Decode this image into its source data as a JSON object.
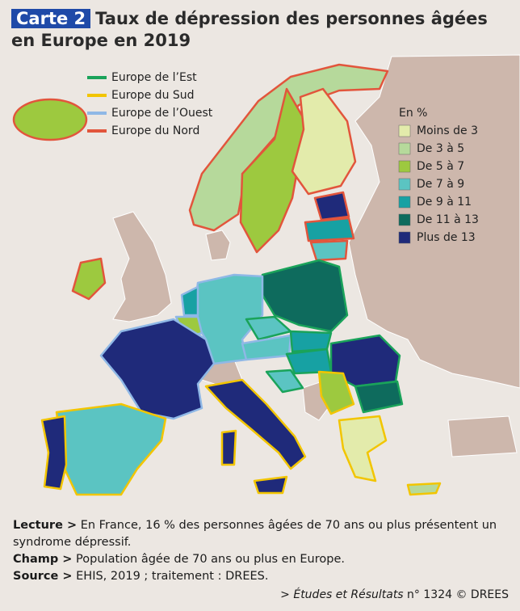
{
  "header": {
    "badge": "Carte 2",
    "title_lines": [
      "Taux de dépression des personnes âgées",
      "en Europe en 2019"
    ]
  },
  "region_legend": [
    {
      "label": "Europe de l’Est",
      "color": "#1aa35a"
    },
    {
      "label": "Europe du Sud",
      "color": "#f2c500"
    },
    {
      "label": "Europe de l’Ouest",
      "color": "#8fb8e6"
    },
    {
      "label": "Europe du Nord",
      "color": "#e2553c"
    }
  ],
  "class_legend": {
    "title": "En %",
    "items": [
      {
        "label": "Moins de 3",
        "color": "#e3ebab"
      },
      {
        "label": "De 3 à 5",
        "color": "#b6d99b"
      },
      {
        "label": "De 5 à 7",
        "color": "#9dc93f"
      },
      {
        "label": "De 7 à 9",
        "color": "#5bc4c2"
      },
      {
        "label": "De 9 à 11",
        "color": "#17a1a3"
      },
      {
        "label": "De 11 à 13",
        "color": "#0e6b5d"
      },
      {
        "label": "Plus de 13",
        "color": "#1f2a7a"
      }
    ]
  },
  "notes": [
    {
      "label": "Lecture >",
      "text": "En France, 16 % des personnes âgées de 70 ans ou plus présentent un syndrome dépressif."
    },
    {
      "label": "Champ >",
      "text": "Population âgée de 70 ans ou plus en Europe."
    },
    {
      "label": "Source >",
      "text": "EHIS, 2019 ; traitement : DREES."
    }
  ],
  "footer": {
    "prefix": "> ",
    "italic": "Études et Résultats",
    "rest": " n° 1324 © DREES"
  }
}
